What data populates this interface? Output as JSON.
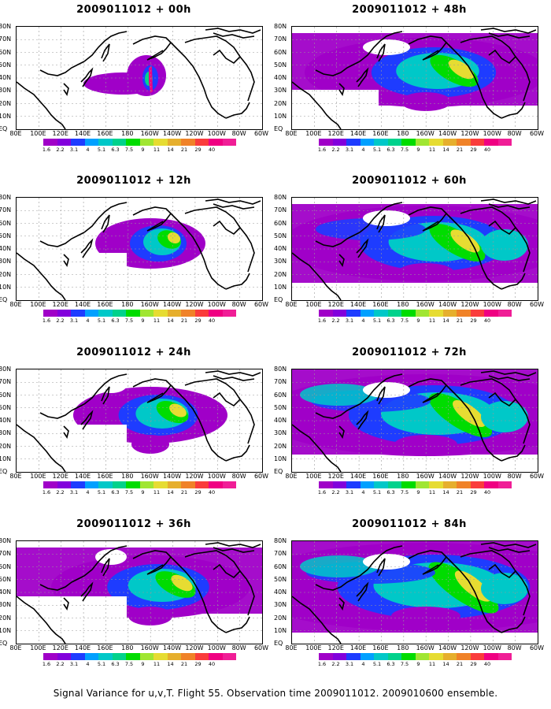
{
  "caption": "Signal Variance for u,v,T. Flight 55. Observation time 2009011012. 2009010600 ensemble.",
  "panels": [
    {
      "title": "2009011012 + 00h",
      "level": 0
    },
    {
      "title": "2009011012 + 48h",
      "level": 4
    },
    {
      "title": "2009011012 + 12h",
      "level": 1
    },
    {
      "title": "2009011012 + 60h",
      "level": 5
    },
    {
      "title": "2009011012 + 24h",
      "level": 2
    },
    {
      "title": "2009011012 + 72h",
      "level": 6
    },
    {
      "title": "2009011012 + 36h",
      "level": 3
    },
    {
      "title": "2009011012 + 84h",
      "level": 7
    }
  ],
  "lat_labels": [
    "80N",
    "70N",
    "60N",
    "50N",
    "40N",
    "30N",
    "20N",
    "10N",
    "EQ"
  ],
  "lon_labels": [
    "80E",
    "100E",
    "120E",
    "140E",
    "160E",
    "180",
    "160W",
    "140W",
    "120W",
    "100W",
    "80W",
    "60W"
  ],
  "colorbar": {
    "labels": [
      "1.6",
      "2.2",
      "3.1",
      "4",
      "5.1",
      "6.3",
      "7.5",
      "9",
      "11",
      "14",
      "21",
      "29",
      "40"
    ],
    "colors": [
      "#a000c8",
      "#8200dc",
      "#1e3cff",
      "#00a0ff",
      "#00c8c8",
      "#00d28c",
      "#00dc00",
      "#a0e632",
      "#e6dc32",
      "#e6af2d",
      "#f08228",
      "#fa3c3c",
      "#f00082"
    ]
  }
}
